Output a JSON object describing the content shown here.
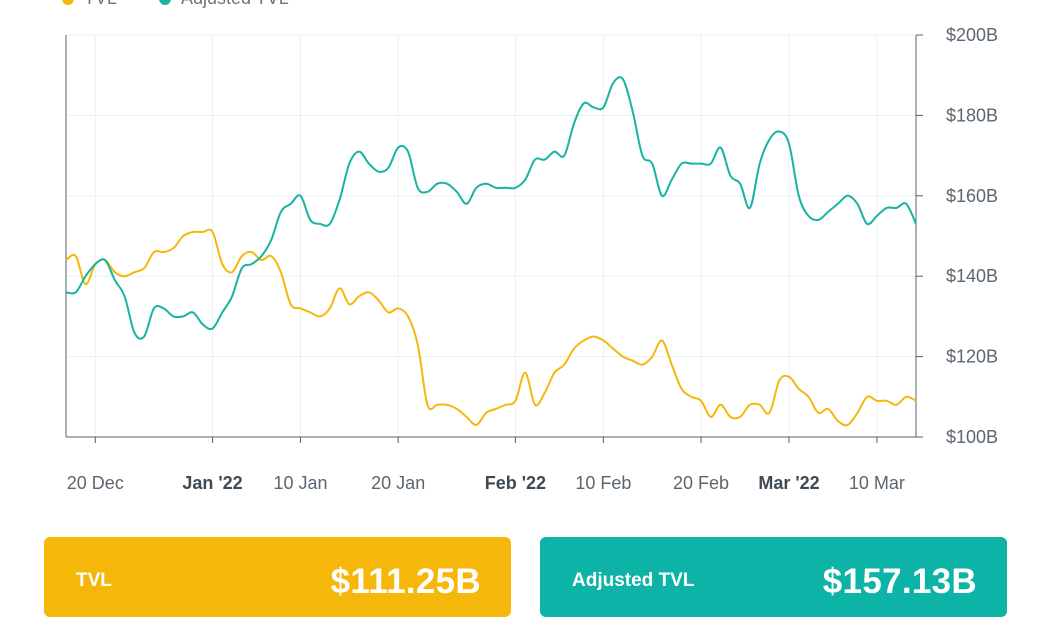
{
  "legend": {
    "tvl_label": "TVL",
    "adjusted_label": "Adjusted TVL"
  },
  "cards": {
    "tvl": {
      "label": "TVL",
      "value": "$111.25B",
      "color": "#f5b70a"
    },
    "adjusted": {
      "label": "Adjusted TVL",
      "value": "$157.13B",
      "color": "#0db3a6"
    }
  },
  "colors": {
    "tvl": "#f5b70a",
    "adjusted": "#17b3a3",
    "grid": "#eceff1",
    "axis": "#55606a",
    "text": "#5b6670"
  },
  "chart_data": {
    "type": "line",
    "title": "",
    "xlabel": "",
    "ylabel": "",
    "x_range": [
      "2021-12-17",
      "2022-03-14"
    ],
    "ylim": [
      100,
      200
    ],
    "y_unit": "billion USD",
    "y_ticks": [
      {
        "value": 200,
        "label": "$200B"
      },
      {
        "value": 180,
        "label": "$180B"
      },
      {
        "value": 160,
        "label": "$160B"
      },
      {
        "value": 140,
        "label": "$140B"
      },
      {
        "value": 120,
        "label": "$120B"
      },
      {
        "value": 100,
        "label": "$100B"
      }
    ],
    "x_ticks": [
      {
        "date": "2021-12-20",
        "label": "20 Dec",
        "bold": false
      },
      {
        "date": "2022-01-01",
        "label": "Jan '22",
        "bold": true
      },
      {
        "date": "2022-01-10",
        "label": "10 Jan",
        "bold": false
      },
      {
        "date": "2022-01-20",
        "label": "20 Jan",
        "bold": false
      },
      {
        "date": "2022-02-01",
        "label": "Feb '22",
        "bold": true
      },
      {
        "date": "2022-02-10",
        "label": "10 Feb",
        "bold": false
      },
      {
        "date": "2022-02-20",
        "label": "20 Feb",
        "bold": false
      },
      {
        "date": "2022-03-01",
        "label": "Mar '22",
        "bold": true
      },
      {
        "date": "2022-03-10",
        "label": "10 Mar",
        "bold": false
      }
    ],
    "grid": true,
    "legend_position": "top-left",
    "x": [
      "2021-12-17",
      "2021-12-18",
      "2021-12-19",
      "2021-12-20",
      "2021-12-21",
      "2021-12-22",
      "2021-12-23",
      "2021-12-24",
      "2021-12-25",
      "2021-12-26",
      "2021-12-27",
      "2021-12-28",
      "2021-12-29",
      "2021-12-30",
      "2021-12-31",
      "2022-01-01",
      "2022-01-02",
      "2022-01-03",
      "2022-01-04",
      "2022-01-05",
      "2022-01-06",
      "2022-01-07",
      "2022-01-08",
      "2022-01-09",
      "2022-01-10",
      "2022-01-11",
      "2022-01-12",
      "2022-01-13",
      "2022-01-14",
      "2022-01-15",
      "2022-01-16",
      "2022-01-17",
      "2022-01-18",
      "2022-01-19",
      "2022-01-20",
      "2022-01-21",
      "2022-01-22",
      "2022-01-23",
      "2022-01-24",
      "2022-01-25",
      "2022-01-26",
      "2022-01-27",
      "2022-01-28",
      "2022-01-29",
      "2022-01-30",
      "2022-01-31",
      "2022-02-01",
      "2022-02-02",
      "2022-02-03",
      "2022-02-04",
      "2022-02-05",
      "2022-02-06",
      "2022-02-07",
      "2022-02-08",
      "2022-02-09",
      "2022-02-10",
      "2022-02-11",
      "2022-02-12",
      "2022-02-13",
      "2022-02-14",
      "2022-02-15",
      "2022-02-16",
      "2022-02-17",
      "2022-02-18",
      "2022-02-19",
      "2022-02-20",
      "2022-02-21",
      "2022-02-22",
      "2022-02-23",
      "2022-02-24",
      "2022-02-25",
      "2022-02-26",
      "2022-02-27",
      "2022-02-28",
      "2022-03-01",
      "2022-03-02",
      "2022-03-03",
      "2022-03-04",
      "2022-03-05",
      "2022-03-06",
      "2022-03-07",
      "2022-03-08",
      "2022-03-09",
      "2022-03-10",
      "2022-03-11",
      "2022-03-12",
      "2022-03-13",
      "2022-03-14"
    ],
    "series": [
      {
        "name": "TVL",
        "values": [
          144,
          145,
          138,
          143,
          144,
          141,
          140,
          141,
          142,
          146,
          146,
          147,
          150,
          151,
          151,
          151,
          143,
          141,
          145,
          146,
          144,
          145,
          141,
          133,
          132,
          131,
          130,
          132,
          137,
          133,
          135,
          136,
          134,
          131,
          132,
          130,
          123,
          108,
          108,
          108,
          107,
          105,
          103,
          106,
          107,
          108,
          109,
          116,
          108,
          111,
          116,
          118,
          122,
          124,
          125,
          124,
          122,
          120,
          119,
          118,
          120,
          124,
          118,
          112,
          110,
          109,
          105,
          108,
          105,
          105,
          108,
          108,
          106,
          114,
          115,
          112,
          110,
          106,
          107,
          104,
          103,
          106,
          110,
          109,
          109,
          108,
          110,
          109
        ],
        "color": "#f5b70a"
      },
      {
        "name": "Adjusted TVL",
        "values": [
          136,
          136,
          140,
          143,
          144,
          139,
          135,
          126,
          125,
          132,
          132,
          130,
          130,
          131,
          128,
          127,
          131,
          135,
          142,
          143,
          145,
          149,
          156,
          158,
          160,
          154,
          153,
          153,
          159,
          168,
          171,
          168,
          166,
          167,
          172,
          171,
          162,
          161,
          163,
          163,
          161,
          158,
          162,
          163,
          162,
          162,
          162,
          164,
          169,
          169,
          171,
          170,
          178,
          183,
          182,
          182,
          188,
          189,
          181,
          170,
          168,
          160,
          164,
          168,
          168,
          168,
          168,
          172,
          165,
          163,
          157,
          168,
          174,
          176,
          173,
          160,
          155,
          154,
          156,
          158,
          160,
          158,
          153,
          155,
          157,
          157,
          158,
          153
        ]
      }
    ]
  }
}
